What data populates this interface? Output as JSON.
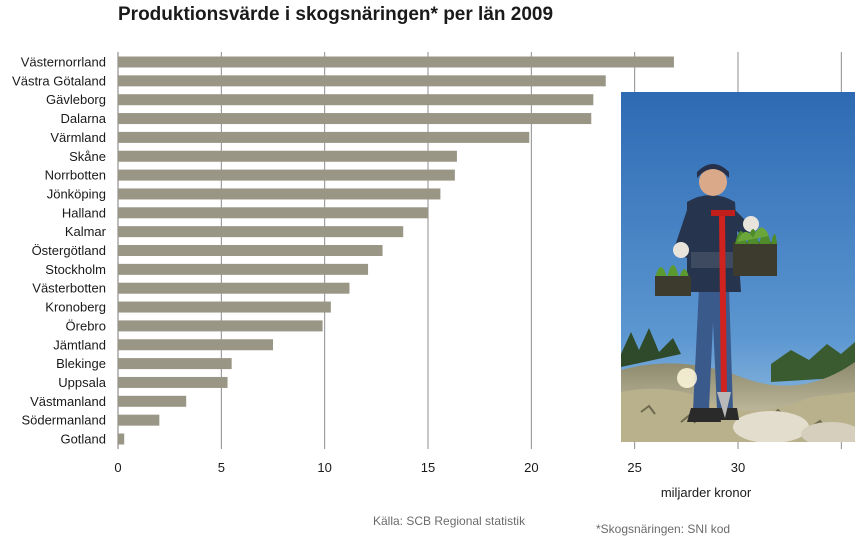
{
  "chart_data": {
    "type": "bar",
    "orientation": "horizontal",
    "title": "Produktionsvärde i skogsnäringen* per län 2009",
    "xlabel": "miljarder kronor",
    "xlim": [
      0,
      35
    ],
    "xticks": [
      0,
      5,
      10,
      15,
      20,
      25,
      30
    ],
    "grid": true,
    "color": "#999686",
    "categories": [
      "Västernorrland",
      "Västra Götaland",
      "Gävleborg",
      "Dalarna",
      "Värmland",
      "Skåne",
      "Norrbotten",
      "Jönköping",
      "Halland",
      "Kalmar",
      "Östergötland",
      "Stockholm",
      "Västerbotten",
      "Kronoberg",
      "Örebro",
      "Jämtland",
      "Blekinge",
      "Uppsala",
      "Västmanland",
      "Södermanland",
      "Gotland"
    ],
    "values": [
      26.9,
      23.6,
      23.0,
      22.9,
      19.9,
      16.4,
      16.3,
      15.6,
      15.0,
      13.8,
      12.8,
      12.1,
      11.2,
      10.3,
      9.9,
      7.5,
      5.5,
      5.3,
      3.3,
      2.0,
      0.3
    ]
  },
  "source_note": "Källa: SCB Regional statistik",
  "footnote": "*Skogsnäringen: SNI kod",
  "photo": {
    "icon": "forestry-worker-planting-seedlings-photo",
    "sky_color": "#3f7fc2"
  }
}
